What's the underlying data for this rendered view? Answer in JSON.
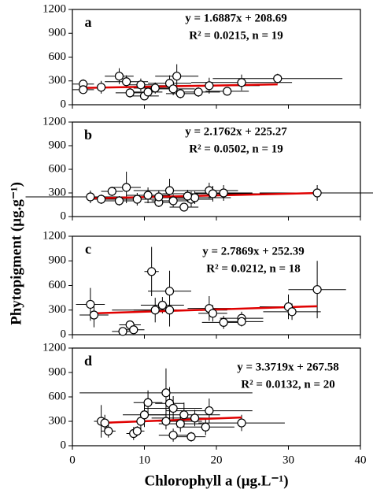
{
  "y_label": "Phytopigment (µg.g⁻¹)",
  "x_label": "Chlorophyll a (µg.L⁻¹)",
  "chart_data": [
    {
      "type": "scatter",
      "panel_label": "a",
      "equation": "y = 1.6887x + 208.69",
      "stats": "R² = 0.0215, n = 19",
      "trendline": {
        "slope": 1.6887,
        "intercept": 208.69,
        "color": "#e00000"
      },
      "x": [
        1.5,
        1.5,
        4,
        6.5,
        7.5,
        8,
        9.5,
        10,
        10.5,
        11.5,
        13.5,
        14,
        14.5,
        15,
        17.5,
        19,
        21.5,
        23.5,
        28.5
      ],
      "xerr": [
        1.5,
        1.5,
        3,
        2,
        3,
        2,
        2,
        2,
        2,
        3,
        3,
        3,
        3,
        2,
        3,
        7,
        3,
        7,
        9
      ],
      "values": [
        260,
        190,
        220,
        360,
        290,
        150,
        250,
        110,
        160,
        210,
        270,
        200,
        360,
        140,
        160,
        240,
        170,
        280,
        330
      ],
      "yerr": [
        60,
        40,
        80,
        100,
        80,
        60,
        80,
        50,
        60,
        70,
        100,
        80,
        150,
        60,
        60,
        100,
        50,
        100,
        60
      ],
      "xlim": [
        0,
        40
      ],
      "xticks": [
        0,
        10,
        20,
        30,
        40
      ],
      "ylim": [
        0,
        1200
      ],
      "yticks": [
        0,
        300,
        600,
        900,
        1200
      ]
    },
    {
      "type": "scatter",
      "panel_label": "b",
      "equation": "y = 2.1762x + 225.27",
      "stats": "R² = 0.0502, n = 19",
      "trendline": {
        "slope": 2.1762,
        "intercept": 225.27,
        "color": "#e00000"
      },
      "x": [
        2.5,
        4,
        5.5,
        6.5,
        7.5,
        9,
        10.5,
        12,
        13.5,
        14,
        15.5,
        16.5,
        17,
        19,
        19.5,
        21,
        34,
        12,
        16
      ],
      "xerr": [
        9,
        2,
        1.5,
        2,
        2,
        3,
        3,
        2,
        5,
        3,
        2,
        3,
        5,
        4,
        7,
        4,
        8,
        4,
        3
      ],
      "values": [
        250,
        220,
        320,
        200,
        370,
        220,
        270,
        180,
        330,
        200,
        120,
        220,
        240,
        330,
        290,
        300,
        300,
        250,
        260
      ],
      "yerr": [
        80,
        60,
        60,
        60,
        200,
        80,
        100,
        60,
        150,
        80,
        50,
        100,
        80,
        100,
        100,
        100,
        100,
        80,
        80
      ],
      "xlim": [
        0,
        40
      ],
      "xticks": [
        0,
        10,
        20,
        30,
        40
      ],
      "ylim": [
        0,
        1200
      ],
      "yticks": [
        0,
        300,
        600,
        900,
        1200
      ]
    },
    {
      "type": "scatter",
      "panel_label": "c",
      "equation": "y = 2.7869x + 252.39",
      "stats": "R² = 0.0212, n = 18",
      "trendline": {
        "slope": 2.7869,
        "intercept": 252.39,
        "color": "#e00000"
      },
      "x": [
        2.5,
        3,
        7,
        8,
        8.5,
        11,
        11.5,
        12.5,
        13.5,
        13.5,
        19,
        19.5,
        21,
        23.5,
        23.5,
        30,
        30.5,
        34
      ],
      "xerr": [
        2,
        2,
        1.5,
        1.5,
        1.5,
        1,
        3,
        3,
        3,
        8,
        3,
        2,
        3,
        3,
        3,
        4,
        4,
        4
      ],
      "values": [
        370,
        240,
        40,
        120,
        60,
        770,
        300,
        360,
        530,
        300,
        320,
        260,
        150,
        200,
        160,
        340,
        280,
        550
      ],
      "yerr": [
        200,
        150,
        30,
        40,
        40,
        300,
        150,
        100,
        250,
        200,
        150,
        100,
        80,
        80,
        60,
        150,
        100,
        350
      ],
      "xlim": [
        0,
        40
      ],
      "xticks": [
        0,
        10,
        20,
        30,
        40
      ],
      "ylim": [
        0,
        1200
      ],
      "yticks": [
        0,
        300,
        600,
        900,
        1200
      ]
    },
    {
      "type": "scatter",
      "panel_label": "d",
      "equation": "y = 3.3719x + 267.58",
      "stats": "R² = 0.0132, n = 20",
      "trendline": {
        "slope": 3.3719,
        "intercept": 267.58,
        "color": "#e00000"
      },
      "x": [
        4,
        4.5,
        5,
        8.5,
        9,
        9.5,
        10,
        10.5,
        13,
        13.5,
        14,
        14,
        15,
        15.5,
        16.5,
        17,
        18.5,
        19,
        23.5,
        13
      ],
      "xerr": [
        1,
        1,
        1,
        1,
        1,
        2,
        3,
        2,
        12,
        2,
        4,
        2,
        3,
        5,
        2,
        6,
        4,
        6,
        6,
        5
      ],
      "values": [
        300,
        280,
        180,
        150,
        180,
        300,
        380,
        530,
        650,
        520,
        460,
        130,
        270,
        380,
        110,
        340,
        230,
        430,
        280,
        300
      ],
      "yerr": [
        200,
        100,
        80,
        80,
        60,
        100,
        150,
        150,
        300,
        200,
        150,
        80,
        100,
        150,
        60,
        100,
        100,
        150,
        100,
        100
      ],
      "xlim": [
        0,
        40
      ],
      "xticks": [
        0,
        10,
        20,
        30,
        40
      ],
      "ylim": [
        0,
        1200
      ],
      "yticks": [
        0,
        300,
        600,
        900,
        1200
      ]
    }
  ]
}
